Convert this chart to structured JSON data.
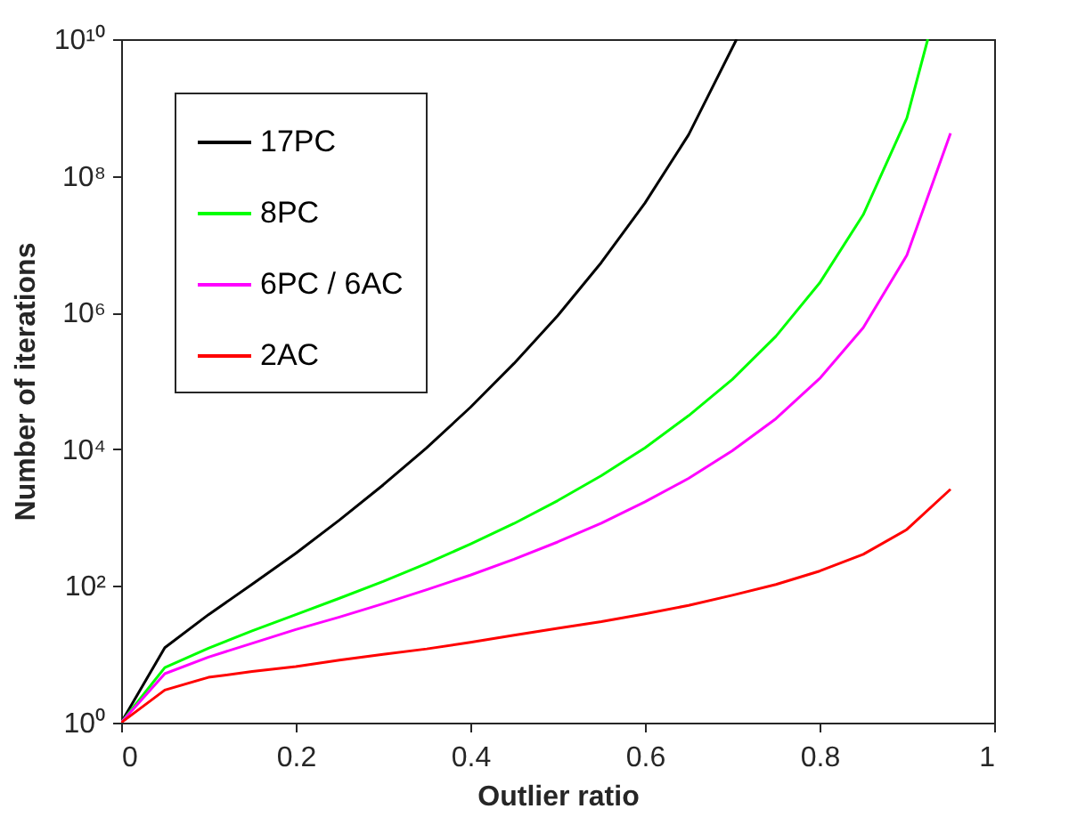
{
  "chart_data": {
    "type": "line",
    "xlabel": "Outlier ratio",
    "ylabel": "Number of iterations",
    "log": "y",
    "grid": false,
    "legend": "top left",
    "line_style": "solid",
    "xlim": [
      0,
      1
    ],
    "xticks": [
      0,
      0.2,
      0.4,
      0.6,
      0.8,
      1
    ],
    "ylim": [
      1,
      10000000000
    ],
    "yticks": [
      {
        "value": 1,
        "label": "10⁰"
      },
      {
        "value": 100,
        "label": "10²"
      },
      {
        "value": 10000,
        "label": "10⁴"
      },
      {
        "value": 1000000,
        "label": "10⁶"
      },
      {
        "value": 100000000,
        "label": "10⁸"
      },
      {
        "value": 10000000000,
        "label": "10¹⁰"
      }
    ],
    "series": [
      {
        "name": "17PC",
        "color": "#000000",
        "x": [
          0,
          0.05,
          0.1,
          0.15,
          0.2,
          0.25,
          0.3,
          0.35,
          0.4,
          0.45,
          0.5,
          0.55,
          0.6,
          0.65,
          0.705
        ],
        "values": [
          1,
          12.5,
          38,
          106,
          300,
          920,
          3000,
          10500,
          41000,
          180000,
          900000,
          5400000,
          40000000,
          400000000,
          10000000000
        ]
      },
      {
        "name": "8PC",
        "color": "#00ff00",
        "x": [
          0,
          0.05,
          0.1,
          0.15,
          0.2,
          0.25,
          0.3,
          0.35,
          0.4,
          0.45,
          0.5,
          0.55,
          0.6,
          0.65,
          0.7,
          0.75,
          0.8,
          0.85,
          0.9,
          0.924
        ],
        "values": [
          1,
          6.4,
          12.3,
          22,
          38,
          66,
          116,
          213,
          410,
          820,
          1770,
          4100,
          10500,
          31000,
          105000,
          450000,
          2700000,
          27000000,
          700000000,
          10000000000
        ]
      },
      {
        "name": "6PC / 6AC",
        "color": "#ff00ff",
        "x": [
          0,
          0.05,
          0.1,
          0.15,
          0.2,
          0.25,
          0.3,
          0.35,
          0.4,
          0.45,
          0.5,
          0.55,
          0.6,
          0.65,
          0.7,
          0.75,
          0.8,
          0.85,
          0.9,
          0.95
        ],
        "values": [
          1,
          5.2,
          9.1,
          14.5,
          23,
          35,
          55,
          88,
          144,
          246,
          440,
          830,
          1700,
          3750,
          9500,
          28000,
          108000,
          600000,
          6900000,
          420000000
        ]
      },
      {
        "name": "2AC",
        "color": "#ff0000",
        "x": [
          0,
          0.05,
          0.1,
          0.15,
          0.2,
          0.25,
          0.3,
          0.35,
          0.4,
          0.45,
          0.5,
          0.55,
          0.6,
          0.65,
          0.7,
          0.75,
          0.8,
          0.85,
          0.9,
          0.95
        ],
        "values": [
          1,
          3,
          4.6,
          5.6,
          6.6,
          8.2,
          10,
          12,
          15,
          19,
          24,
          30,
          39,
          52,
          73,
          105,
          165,
          290,
          670,
          2600
        ]
      }
    ]
  }
}
